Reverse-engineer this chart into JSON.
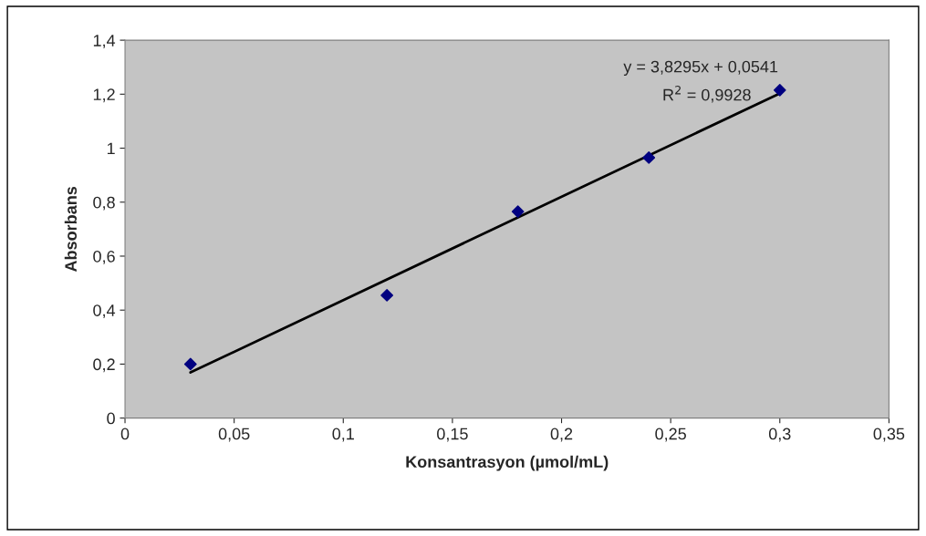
{
  "chart_data": {
    "type": "scatter",
    "xlabel": "Konsantrasyon (µmol/mL)",
    "ylabel": "Absorbans",
    "annotations": [
      "y = 3,8295x + 0,0541",
      "R$^{2}$ = 0,9928"
    ],
    "series": [
      {
        "color": "#000080",
        "marker": "diamond",
        "x": [
          0.03,
          0.12,
          0.18,
          0.24,
          0.3
        ],
        "values": [
          0.2,
          0.455,
          0.765,
          0.965,
          1.215
        ]
      },
      {
        "type": "line",
        "color": "#000000",
        "marker": "none",
        "line_style": "solid",
        "x": [
          0.03,
          0.3
        ],
        "values": [
          0.169,
          1.203
        ]
      }
    ],
    "xlim": [
      0,
      0.35
    ],
    "ylim": [
      0,
      1.4
    ],
    "xticks": [
      0,
      {
        "value": 0.05,
        "label": "0,05"
      },
      {
        "value": 0.1,
        "label": "0,1"
      },
      {
        "value": 0.15,
        "label": "0,15"
      },
      {
        "value": 0.2,
        "label": "0,2"
      },
      {
        "value": 0.25,
        "label": "0,25"
      },
      {
        "value": 0.3,
        "label": "0,3"
      },
      {
        "value": 0.35,
        "label": "0,35"
      }
    ],
    "yticks": [
      0,
      {
        "value": 0.2,
        "label": "0,2"
      },
      {
        "value": 0.4,
        "label": "0,4"
      },
      {
        "value": 0.6,
        "label": "0,6"
      },
      {
        "value": 0.8,
        "label": "0,8"
      },
      1,
      {
        "value": 1.2,
        "label": "1,2"
      },
      {
        "value": 1.4,
        "label": "1,4"
      }
    ],
    "grid": false,
    "legend": false
  }
}
